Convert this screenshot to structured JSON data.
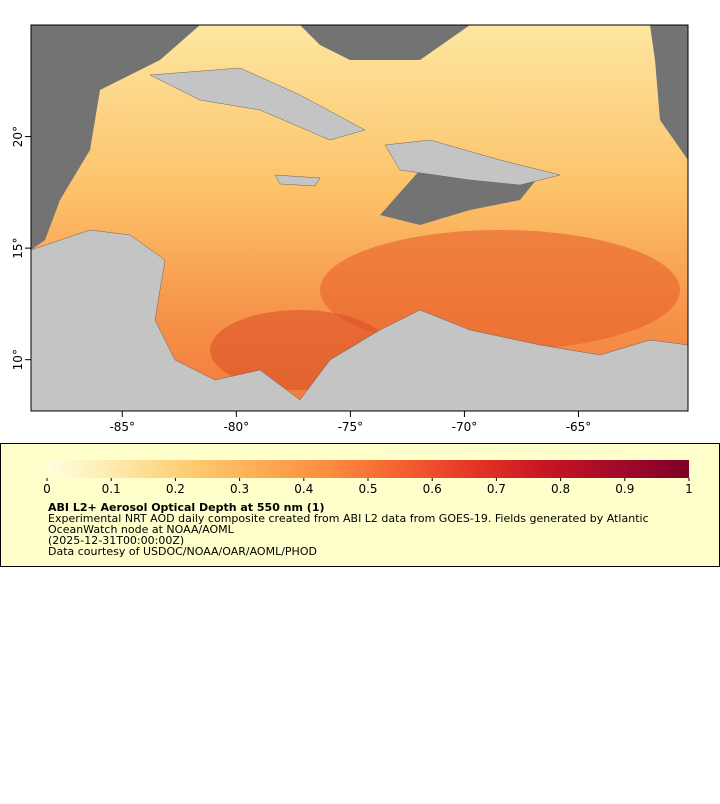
{
  "map": {
    "xlim": [
      -89,
      -60.2
    ],
    "ylim": [
      7.7,
      25
    ],
    "xticks": [
      {
        "value": -85,
        "label": "-85°"
      },
      {
        "value": -80,
        "label": "-80°"
      },
      {
        "value": -75,
        "label": "-75°"
      },
      {
        "value": -70,
        "label": "-70°"
      },
      {
        "value": -65,
        "label": "-65°"
      }
    ],
    "yticks": [
      {
        "value": 10,
        "label": "10°"
      },
      {
        "value": 15,
        "label": "15°"
      },
      {
        "value": 20,
        "label": "20°"
      }
    ]
  },
  "colorbar": {
    "lim": [
      0,
      1
    ],
    "ticks": [
      0,
      0.1,
      0.2,
      0.3,
      0.4,
      0.5,
      0.6,
      0.7,
      0.8,
      0.9,
      1
    ],
    "colors": [
      "#ffffe0",
      "#fee8a8",
      "#fecc72",
      "#fdac52",
      "#fc8a3e",
      "#f45f30",
      "#e53425",
      "#c71424",
      "#a30a2a",
      "#7f0026"
    ]
  },
  "legend": {
    "title": "ABI L2+ Aerosol Optical Depth at 550 nm (1)",
    "lines": [
      "Experimental NRT AOD daily composite created from ABI L2 data from GOES-19. Fields generated by Atlantic",
      "OceanWatch node at NOAA/AOML",
      "(2025-12-31T00:00:00Z)",
      "Data courtesy of USDOC/NOAA/OAR/AOML/PHOD"
    ]
  }
}
